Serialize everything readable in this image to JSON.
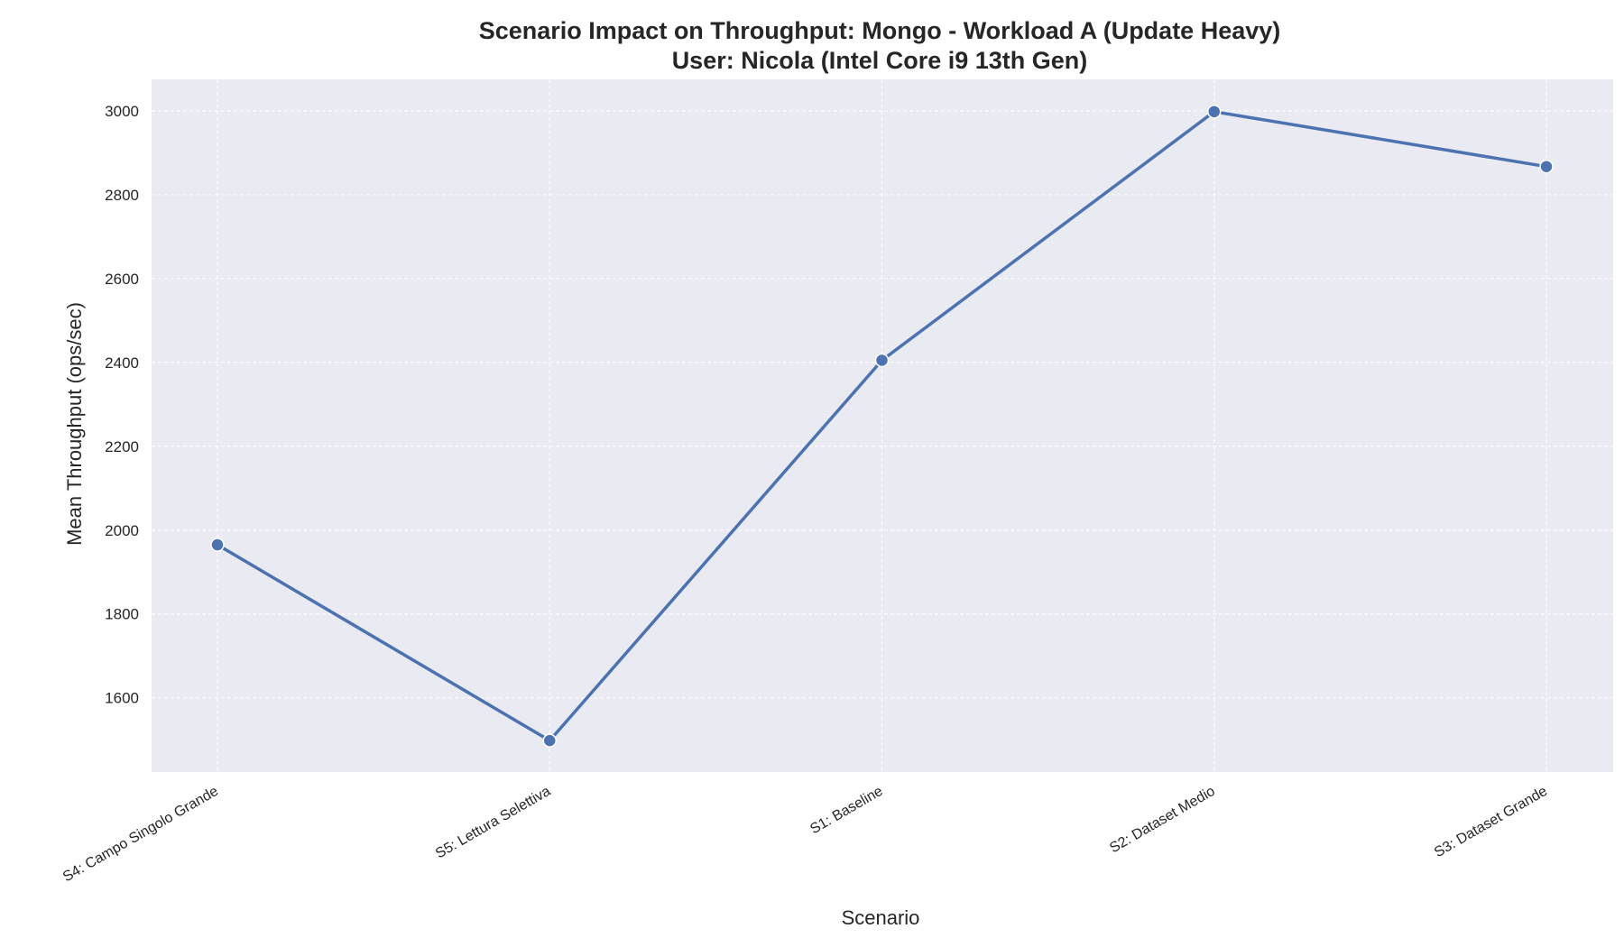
{
  "chart_data": {
    "type": "line",
    "title_line1": "Scenario Impact on Throughput: Mongo - Workload A (Update Heavy)",
    "title_line2": "User: Nicola (Intel Core i9 13th Gen)",
    "xlabel": "Scenario",
    "ylabel": "Mean Throughput (ops/sec)",
    "categories": [
      "S4: Campo Singolo Grande",
      "S5: Lettura Selettiva",
      "S1: Baseline",
      "S2: Dataset Medio",
      "S3: Dataset Grande"
    ],
    "series": [
      {
        "values": [
          1965,
          1498,
          2405,
          2998,
          2867
        ]
      }
    ],
    "yticks": [
      1600,
      1800,
      2000,
      2200,
      2400,
      2600,
      2800,
      3000
    ],
    "ylim": [
      1423,
      3075
    ],
    "grid": true,
    "line_color": "#4c72b0",
    "background_color": "#eaeaf2",
    "grid_color": "#ffffff"
  }
}
